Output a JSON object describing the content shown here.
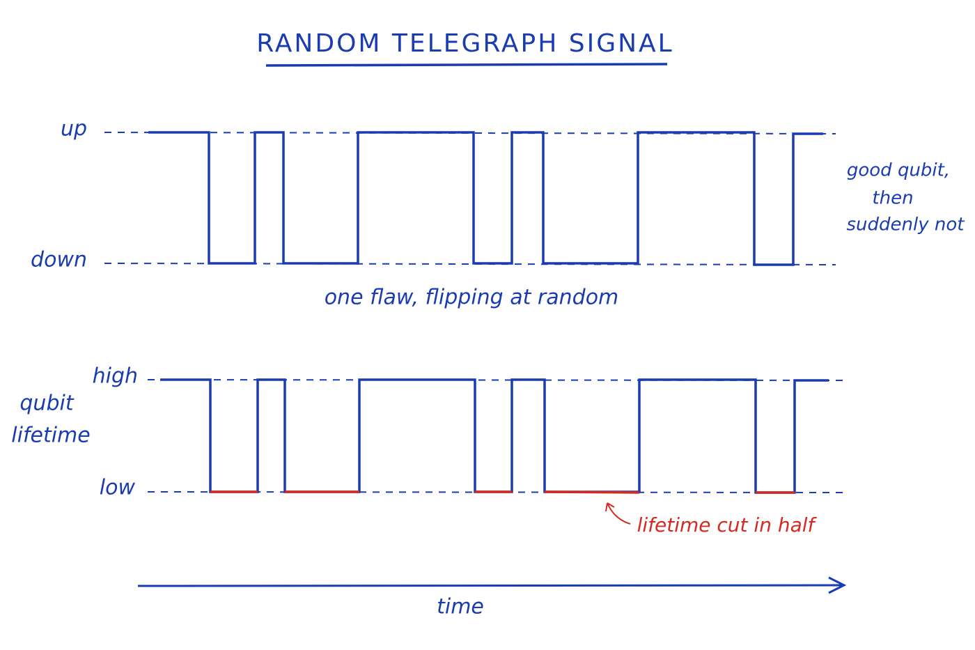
{
  "title": "RANDOM TELEGRAPH SIGNAL",
  "top_panel": {
    "levels": {
      "up": "up",
      "down": "down"
    },
    "caption": "one flaw, flipping at random",
    "annotation": [
      "good qubit,",
      "then",
      "suddenly not"
    ]
  },
  "bottom_panel": {
    "axis_label": [
      "qubit",
      "lifetime"
    ],
    "levels": {
      "high": "high",
      "low": "low"
    },
    "annotation": "lifetime cut in half"
  },
  "time_axis": {
    "label": "time"
  }
}
